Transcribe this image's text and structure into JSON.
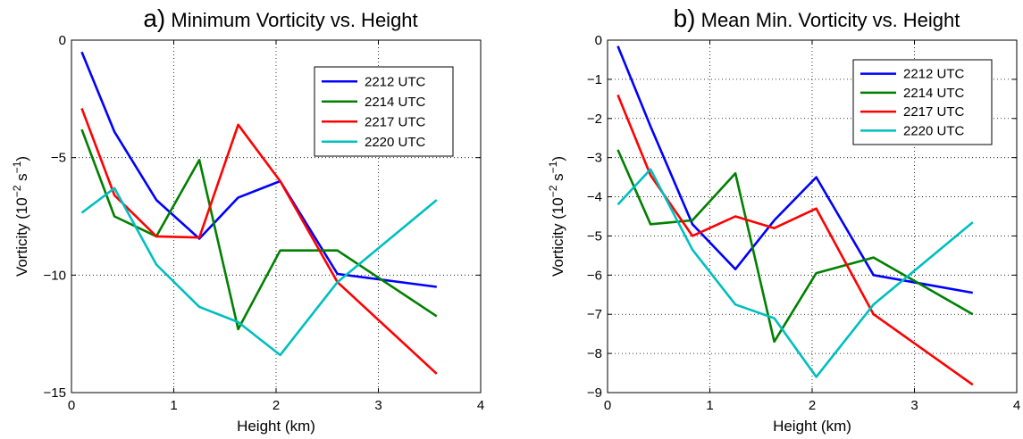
{
  "chart_data": [
    {
      "type": "line",
      "panel_label": "a)",
      "title": "Minimum Vorticity vs. Height",
      "xlabel": "Height (km)",
      "ylabel": "Vorticity (10",
      "ylabel_exp1": "−2",
      "ylabel_mid": " s",
      "ylabel_exp2": "−1",
      "ylabel_end": ")",
      "xlim": [
        0,
        4
      ],
      "ylim": [
        -15,
        0
      ],
      "xticks": [
        0,
        1,
        2,
        3,
        4
      ],
      "yticks": [
        -15,
        -10,
        -5,
        0
      ],
      "grid": true,
      "legend_position": "top-right",
      "x": [
        0.1,
        0.42,
        0.83,
        1.25,
        1.63,
        2.04,
        2.6,
        3.57
      ],
      "series": [
        {
          "name": "2212 UTC",
          "color": "#0000ff",
          "values": [
            -0.5,
            -3.9,
            -6.8,
            -8.45,
            -6.7,
            -6.0,
            -9.95,
            -10.5
          ]
        },
        {
          "name": "2214 UTC",
          "color": "#008000",
          "values": [
            -3.8,
            -7.5,
            -8.35,
            -5.1,
            -12.3,
            -8.95,
            -8.95,
            -11.75
          ]
        },
        {
          "name": "2217 UTC",
          "color": "#ff0000",
          "values": [
            -2.9,
            -6.6,
            -8.35,
            -8.4,
            -3.6,
            -6.0,
            -10.3,
            -14.2
          ]
        },
        {
          "name": "2220 UTC",
          "color": "#00bfbf",
          "values": [
            -7.35,
            -6.3,
            -9.55,
            -11.35,
            -12.0,
            -13.4,
            -10.3,
            -6.8
          ]
        }
      ]
    },
    {
      "type": "line",
      "panel_label": "b)",
      "title": "Mean Min. Vorticity vs. Height",
      "xlabel": "Height (km)",
      "ylabel": "Vorticity (10",
      "ylabel_exp1": "−2",
      "ylabel_mid": " s",
      "ylabel_exp2": "−1",
      "ylabel_end": ")",
      "xlim": [
        0,
        4
      ],
      "ylim": [
        -9,
        0
      ],
      "xticks": [
        0,
        1,
        2,
        3,
        4
      ],
      "yticks": [
        -9,
        -8,
        -7,
        -6,
        -5,
        -4,
        -3,
        -2,
        -1,
        0
      ],
      "grid": true,
      "legend_position": "top-right",
      "x": [
        0.1,
        0.42,
        0.83,
        1.25,
        1.63,
        2.04,
        2.6,
        3.57
      ],
      "series": [
        {
          "name": "2212 UTC",
          "color": "#0000ff",
          "values": [
            -0.15,
            -2.2,
            -4.7,
            -5.85,
            -4.6,
            -3.5,
            -6.0,
            -6.45
          ]
        },
        {
          "name": "2214 UTC",
          "color": "#008000",
          "values": [
            -2.8,
            -4.7,
            -4.6,
            -3.4,
            -7.7,
            -5.95,
            -5.55,
            -7.0
          ]
        },
        {
          "name": "2217 UTC",
          "color": "#ff0000",
          "values": [
            -1.4,
            -3.45,
            -5.0,
            -4.5,
            -4.8,
            -4.3,
            -7.0,
            -8.8
          ]
        },
        {
          "name": "2220 UTC",
          "color": "#00bfbf",
          "values": [
            -4.2,
            -3.3,
            -5.35,
            -6.75,
            -7.1,
            -8.6,
            -6.75,
            -4.65
          ]
        }
      ]
    }
  ]
}
